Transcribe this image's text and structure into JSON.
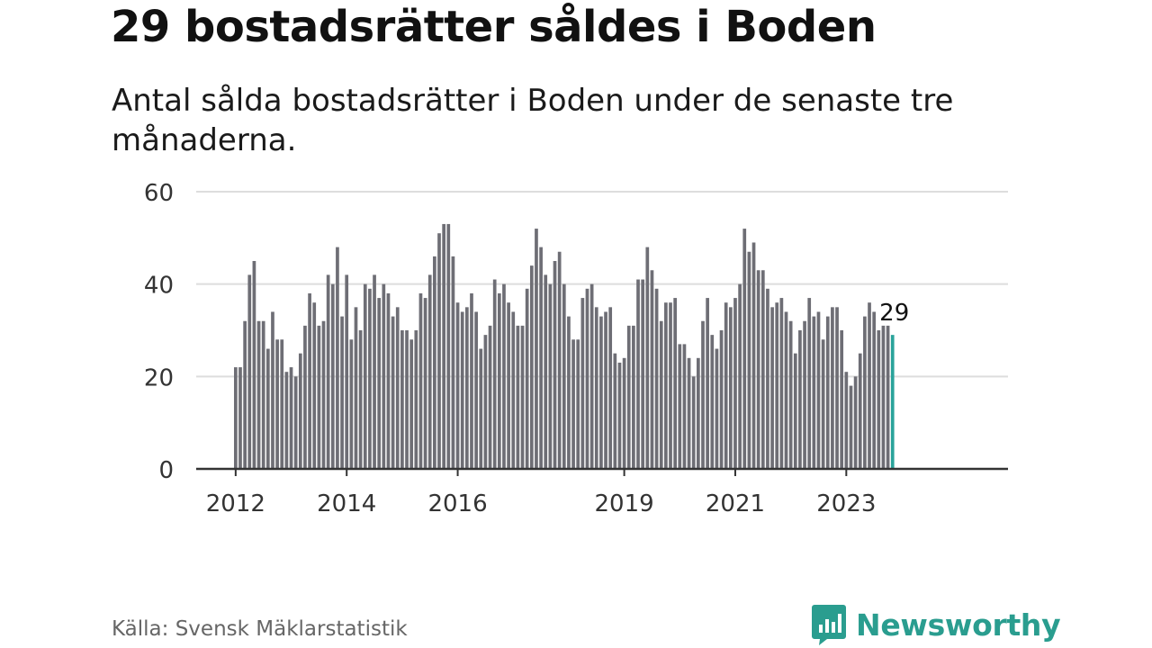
{
  "header": {
    "title": "29 bostadsrätter såldes i Boden",
    "subtitle": "Antal sålda bostadsrätter i Boden under de senaste tre månaderna."
  },
  "footer": {
    "source": "Källa: Svensk Mäklarstatistik",
    "brand": "Newsworthy",
    "brand_icon": "bar-chart-speech-bubble-icon"
  },
  "colors": {
    "bar": "#6e6e75",
    "highlight": "#2aa39b",
    "grid": "#dddddd",
    "axis": "#333333",
    "brand": "#2a9d8f"
  },
  "chart_data": {
    "type": "bar",
    "title": "Antal sålda bostadsrätter i Boden",
    "xlabel": "",
    "ylabel": "",
    "ylim": [
      0,
      60
    ],
    "yticks": [
      0,
      20,
      40,
      60
    ],
    "x_start": "2012-01",
    "xtick_labels": [
      {
        "label": "2012",
        "index": 0
      },
      {
        "label": "2014",
        "index": 24
      },
      {
        "label": "2016",
        "index": 48
      },
      {
        "label": "2019",
        "index": 84
      },
      {
        "label": "2021",
        "index": 108
      },
      {
        "label": "2023",
        "index": 132
      }
    ],
    "values": [
      22,
      22,
      32,
      42,
      45,
      32,
      32,
      26,
      34,
      28,
      28,
      21,
      22,
      20,
      25,
      31,
      38,
      36,
      31,
      32,
      42,
      40,
      48,
      33,
      42,
      28,
      35,
      30,
      40,
      39,
      42,
      37,
      40,
      38,
      33,
      35,
      30,
      30,
      28,
      30,
      38,
      37,
      42,
      46,
      51,
      53,
      53,
      46,
      36,
      34,
      35,
      38,
      34,
      26,
      29,
      31,
      41,
      38,
      40,
      36,
      34,
      31,
      31,
      39,
      44,
      52,
      48,
      42,
      40,
      45,
      47,
      40,
      33,
      28,
      28,
      37,
      39,
      40,
      35,
      33,
      34,
      35,
      25,
      23,
      24,
      31,
      31,
      41,
      41,
      48,
      43,
      39,
      32,
      36,
      36,
      37,
      27,
      27,
      24,
      20,
      24,
      32,
      37,
      29,
      26,
      30,
      36,
      35,
      37,
      40,
      52,
      47,
      49,
      43,
      43,
      39,
      35,
      36,
      37,
      34,
      32,
      25,
      30,
      32,
      37,
      33,
      34,
      28,
      33,
      35,
      35,
      30,
      21,
      18,
      20,
      25,
      33,
      36,
      34,
      30,
      31,
      31,
      29
    ],
    "highlight_last": true,
    "last_label": "29"
  }
}
